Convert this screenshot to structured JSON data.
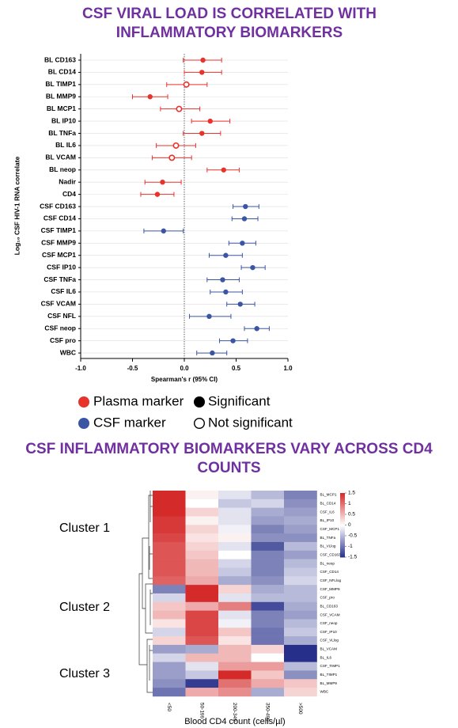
{
  "chart_data": [
    {
      "type": "forest",
      "title": "CSF VIRAL LOAD IS CORRELATED WITH INFLAMMATORY BIOMARKERS",
      "y_label": "Log₁₀ CSF HIV-1 RNA correlate",
      "x_label": "Spearman's r (95% CI)",
      "xlim": [
        -1,
        1
      ],
      "xticks": [
        {
          "value": -1,
          "label": "-1.0"
        },
        {
          "value": -0.5,
          "label": "-0.5"
        },
        {
          "value": 0,
          "label": "0.0"
        },
        {
          "value": 0.5,
          "label": "0.5"
        },
        {
          "value": 1,
          "label": "1.0"
        }
      ],
      "significance_legend": [
        "Significant",
        "Not significant"
      ],
      "series": [
        {
          "name": "Plasma marker",
          "color": "#e8322c",
          "categories": [
            "BL CD163",
            "BL CD14",
            "BL TIMP1",
            "BL MMP9",
            "BL MCP1",
            "BL IP10",
            "BL TNFa",
            "BL IL6",
            "BL VCAM",
            "BL neop",
            "Nadir",
            "CD4"
          ],
          "values": [
            0.18,
            0.17,
            0.02,
            -0.33,
            -0.05,
            0.25,
            0.17,
            -0.08,
            -0.12,
            0.38,
            -0.21,
            -0.26
          ],
          "ci_low": [
            -0.01,
            0.0,
            -0.17,
            -0.5,
            -0.23,
            0.07,
            -0.01,
            -0.27,
            -0.31,
            0.22,
            -0.38,
            -0.42
          ],
          "ci_high": [
            0.36,
            0.36,
            0.22,
            -0.16,
            0.15,
            0.44,
            0.35,
            0.11,
            0.07,
            0.53,
            -0.03,
            -0.1
          ],
          "significant": [
            true,
            true,
            false,
            true,
            false,
            true,
            true,
            false,
            false,
            true,
            true,
            true
          ]
        },
        {
          "name": "CSF marker",
          "color": "#3a55a4",
          "categories": [
            "CSF CD163",
            "CSF CD14",
            "CSF TIMP1",
            "CSF MMP9",
            "CSF MCP1",
            "CSF IP10",
            "CSF TNFa",
            "CSF IL6",
            "CSF VCAM",
            "CSF NFL",
            "CSF neop",
            "CSF pro",
            "WBC"
          ],
          "values": [
            0.59,
            0.58,
            -0.2,
            0.56,
            0.4,
            0.66,
            0.37,
            0.4,
            0.54,
            0.24,
            0.7,
            0.47,
            0.27
          ],
          "ci_low": [
            0.47,
            0.46,
            -0.39,
            0.43,
            0.24,
            0.55,
            0.22,
            0.25,
            0.41,
            0.05,
            0.58,
            0.34,
            0.12
          ],
          "ci_high": [
            0.72,
            0.71,
            -0.01,
            0.69,
            0.56,
            0.78,
            0.53,
            0.56,
            0.68,
            0.45,
            0.82,
            0.61,
            0.41
          ],
          "significant": [
            true,
            true,
            true,
            true,
            true,
            true,
            true,
            true,
            true,
            true,
            true,
            true,
            true
          ]
        }
      ]
    },
    {
      "type": "heatmap",
      "title": "CSF INFLAMMATORY BIOMARKERS VARY ACROSS CD4 COUNTS",
      "x_label": "Blood CD4 count (cells/µl)",
      "columns": [
        "<50",
        "50-199",
        "200-349",
        "350-499",
        ">500"
      ],
      "rows": [
        "BL_MCP1",
        "BL_CD14",
        "CSF_IL6",
        "BL_IP10",
        "CSF_MCP1",
        "BL_TNFa",
        "BL_VLlog",
        "CSF_CD163",
        "BL_neop",
        "CSF_CD14",
        "CSF_NFLlog",
        "CSF_MMP9",
        "CSF_pro",
        "BL_CD163",
        "CSF_VCAM",
        "CSF_neop",
        "CSF_IP10",
        "CSF_VLlog",
        "BL_VCAM",
        "BL_IL6",
        "CSF_TIMP1",
        "BL_TIMP1",
        "BL_MMP9",
        "WBC"
      ],
      "values": [
        [
          1.5,
          0.1,
          -0.2,
          -0.5,
          -0.9
        ],
        [
          1.5,
          0.0,
          -0.4,
          -0.3,
          -0.8
        ],
        [
          1.5,
          0.3,
          -0.2,
          -0.6,
          -0.7
        ],
        [
          1.4,
          0.1,
          -0.2,
          -0.7,
          -0.6
        ],
        [
          1.4,
          0.3,
          -0.1,
          -0.9,
          -0.7
        ],
        [
          1.3,
          0.2,
          0.1,
          -0.8,
          -0.8
        ],
        [
          1.2,
          0.3,
          -0.2,
          -1.2,
          -0.5
        ],
        [
          1.2,
          0.4,
          0.0,
          -0.9,
          -0.7
        ],
        [
          1.2,
          0.5,
          -0.3,
          -0.9,
          -0.5
        ],
        [
          1.2,
          0.5,
          -0.4,
          -0.9,
          -0.4
        ],
        [
          1.1,
          0.6,
          -0.6,
          -0.8,
          -0.3
        ],
        [
          -0.9,
          1.5,
          0.3,
          -0.6,
          -0.5
        ],
        [
          -0.3,
          1.5,
          -0.2,
          -0.5,
          -0.5
        ],
        [
          0.4,
          0.6,
          0.9,
          -1.3,
          -0.6
        ],
        [
          0.5,
          1.3,
          -0.2,
          -0.9,
          -0.7
        ],
        [
          0.2,
          1.3,
          -0.1,
          -0.9,
          -0.5
        ],
        [
          -0.3,
          1.3,
          0.4,
          -1.0,
          -0.4
        ],
        [
          0.3,
          1.2,
          0.2,
          -1.0,
          -0.6
        ],
        [
          -0.7,
          -0.6,
          0.5,
          0.3,
          -1.5
        ],
        [
          -0.3,
          0.5,
          0.5,
          0.0,
          -1.5
        ],
        [
          -0.7,
          -0.2,
          0.7,
          0.7,
          -0.5
        ],
        [
          -0.7,
          -0.4,
          1.5,
          0.4,
          -0.8
        ],
        [
          -0.8,
          -1.4,
          1.0,
          0.6,
          0.4
        ],
        [
          -1.0,
          0.6,
          0.8,
          -0.6,
          0.3
        ]
      ],
      "clim": [
        -1.5,
        1.5
      ],
      "colorbar_ticks": [
        1.5,
        1,
        0.5,
        0,
        -0.5,
        -1,
        -1.5
      ],
      "colormap": [
        "#262f8a",
        "#ffffff",
        "#d42a2a"
      ],
      "clusters": [
        "Cluster 1",
        "Cluster 2",
        "Cluster 3"
      ]
    }
  ]
}
